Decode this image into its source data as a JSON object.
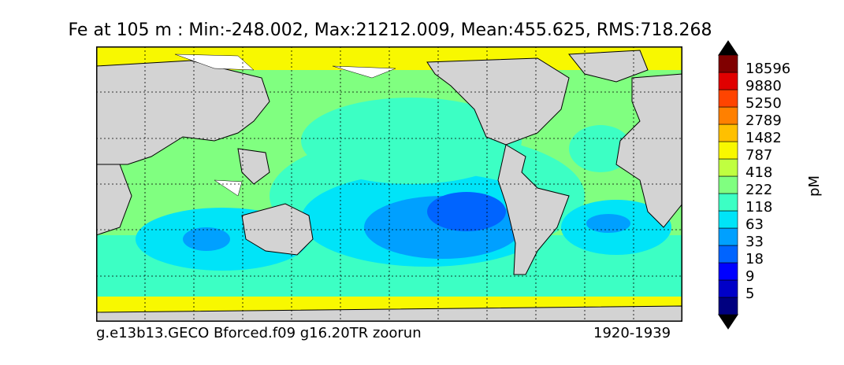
{
  "title": "Fe at 105 m : Min:-248.002, Max:21212.009, Mean:455.625, RMS:718.268",
  "caption": {
    "left": "g.e13b13.GECO Bforced.f09 g16.20TR zoorun",
    "right": "1920-1939"
  },
  "colorbar": {
    "units": "pM",
    "tick_labels": [
      "18596",
      "9880",
      "5250",
      "2789",
      "1482",
      "787",
      "418",
      "222",
      "118",
      "63",
      "33",
      "18",
      "9",
      "5"
    ],
    "colors": [
      "#000080",
      "#0000c8",
      "#0000ff",
      "#0064ff",
      "#00a0ff",
      "#00e4f8",
      "#3cffc4",
      "#80ff80",
      "#c0ff40",
      "#f8f800",
      "#ffc000",
      "#ff8000",
      "#ff4400",
      "#e00000",
      "#800000"
    ]
  },
  "map": {
    "land_color": "#d3d3d3",
    "ice_color": "#ffffff",
    "grid": "dotted"
  }
}
